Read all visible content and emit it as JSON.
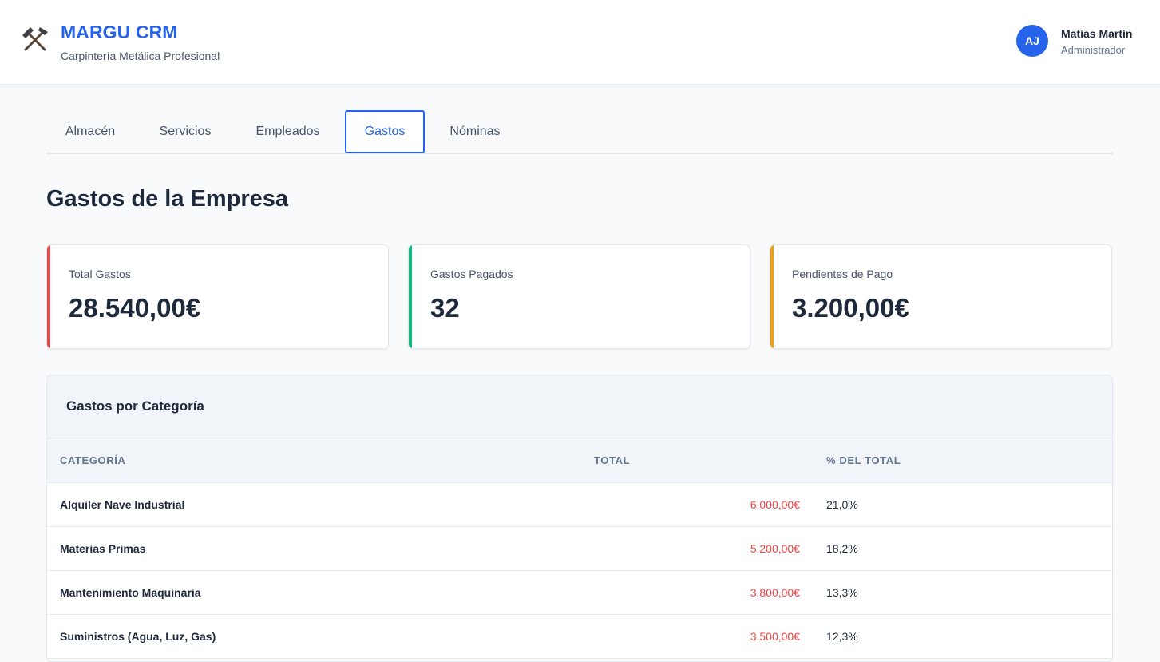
{
  "header": {
    "brand_name": "MARGU CRM",
    "brand_subtitle": "Carpintería Metálica Profesional",
    "logo_icon": "hammer-pick-icon",
    "user": {
      "initials": "AJ",
      "name": "Matías Martín",
      "role": "Administrador"
    }
  },
  "tabs": [
    {
      "label": "Almacén",
      "active": false
    },
    {
      "label": "Servicios",
      "active": false
    },
    {
      "label": "Empleados",
      "active": false
    },
    {
      "label": "Gastos",
      "active": true
    },
    {
      "label": "Nóminas",
      "active": false
    }
  ],
  "page_title": "Gastos de la Empresa",
  "stats": [
    {
      "label": "Total Gastos",
      "value": "28.540,00€",
      "accent": "#ef4444"
    },
    {
      "label": "Gastos Pagados",
      "value": "32",
      "accent": "#10b981"
    },
    {
      "label": "Pendientes de Pago",
      "value": "3.200,00€",
      "accent": "#f59e0b"
    }
  ],
  "category_panel": {
    "title": "Gastos por Categoría",
    "columns": [
      "CATEGORÍA",
      "TOTAL",
      "% DEL TOTAL"
    ],
    "rows": [
      {
        "category": "Alquiler Nave Industrial",
        "total": "6.000,00€",
        "percent": "21,0%"
      },
      {
        "category": "Materias Primas",
        "total": "5.200,00€",
        "percent": "18,2%"
      },
      {
        "category": "Mantenimiento Maquinaria",
        "total": "3.800,00€",
        "percent": "13,3%"
      },
      {
        "category": "Suministros (Agua, Luz, Gas)",
        "total": "3.500,00€",
        "percent": "12,3%"
      }
    ]
  },
  "colors": {
    "primary": "#2563eb",
    "expense": "#ef4444",
    "paid": "#10b981",
    "pending": "#f59e0b"
  }
}
